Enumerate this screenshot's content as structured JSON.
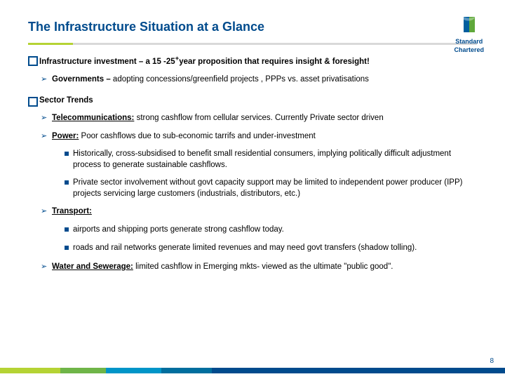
{
  "title": "The Infrastructure Situation at a Glance",
  "logo": {
    "line1": "Standard",
    "line2": "Chartered"
  },
  "body": {
    "item1_bold": "Infrastructure investment – a 15 -25",
    "item1_sup": "+",
    "item1_rest": "year proposition that requires insight & foresight!",
    "item1_sub_bold": "Governments – ",
    "item1_sub_rest": "adopting concessions/greenfield projects , PPPs vs. asset privatisations",
    "item2_bold": "Sector Trends",
    "telecom_label": "Telecommunications:",
    "telecom_rest": " strong cashflow from cellular services. Currently Private sector driven",
    "power_label": "Power:",
    "power_rest": " Poor cashflows due to sub-economic tarrifs and under-investment",
    "power_sub1": "Historically, cross-subsidised to benefit small residential consumers, implying politically difficult adjustment process to generate sustainable cashflows.",
    "power_sub2": "Private sector involvement without govt capacity support may be limited to independent power producer (IPP) projects servicing large customers (industrials, distributors, etc.)",
    "transport_label": "Transport:",
    "transport_sub1": "airports and shipping ports generate strong cashflow today.",
    "transport_sub2": "roads and rail networks generate limited revenues and may need govt transfers (shadow tolling).",
    "water_label": "Water and Sewerage:",
    "water_rest": " limited cashflow in Emerging mkts- viewed as the ultimate \"public good\"."
  },
  "pageNumber": "8",
  "stripes": [
    {
      "color": "#b5d334",
      "width": "12%"
    },
    {
      "color": "#6fb548",
      "width": "9%"
    },
    {
      "color": "#0095c8",
      "width": "11%"
    },
    {
      "color": "#006e9e",
      "width": "10%"
    },
    {
      "color": "#004b8d",
      "width": "58%"
    }
  ]
}
